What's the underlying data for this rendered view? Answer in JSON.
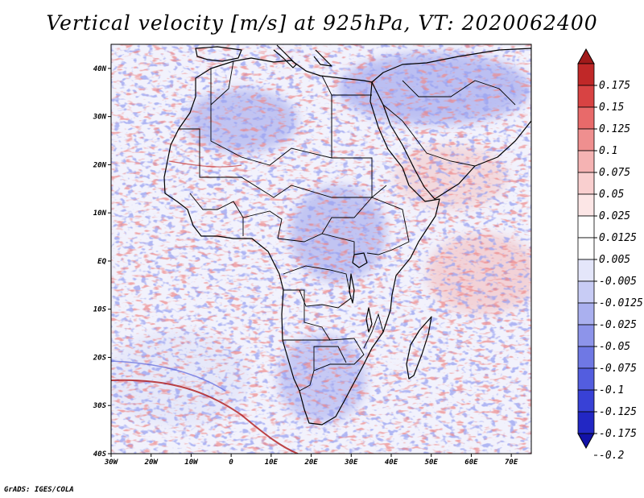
{
  "title": "Vertical velocity [m/s] at 925hPa, VT: 2020062400",
  "credit": "GrADS: IGES/COLA",
  "map": {
    "lon_range": [
      -30,
      75
    ],
    "lat_range": [
      -40,
      45
    ],
    "lat_ticks": [
      {
        "value": 40,
        "label": "40N"
      },
      {
        "value": 30,
        "label": "30N"
      },
      {
        "value": 20,
        "label": "20N"
      },
      {
        "value": 10,
        "label": "10N"
      },
      {
        "value": 0,
        "label": "EQ"
      },
      {
        "value": -10,
        "label": "10S"
      },
      {
        "value": -20,
        "label": "20S"
      },
      {
        "value": -30,
        "label": "30S"
      },
      {
        "value": -40,
        "label": "40S"
      }
    ],
    "lon_ticks": [
      {
        "value": -30,
        "label": "30W"
      },
      {
        "value": -20,
        "label": "20W"
      },
      {
        "value": -10,
        "label": "10W"
      },
      {
        "value": 0,
        "label": "0"
      },
      {
        "value": 10,
        "label": "10E"
      },
      {
        "value": 20,
        "label": "20E"
      },
      {
        "value": 30,
        "label": "30E"
      },
      {
        "value": 40,
        "label": "40E"
      },
      {
        "value": 50,
        "label": "50E"
      },
      {
        "value": 60,
        "label": "60E"
      },
      {
        "value": 70,
        "label": "70E"
      }
    ]
  },
  "colorbar": {
    "colors": [
      "#a11a1a",
      "#c02828",
      "#d84343",
      "#e86a6a",
      "#ef8f8f",
      "#f5b3b3",
      "#f9cfcf",
      "#fce6e6",
      "#ffffff",
      "#ffffff",
      "#e4e6fa",
      "#c8ccf5",
      "#aab0ef",
      "#8d94ea",
      "#6f78e4",
      "#535ddf",
      "#3841d6",
      "#2227c4",
      "#1212a8"
    ],
    "labels": [
      "0.175",
      "0.15",
      "0.125",
      "0.1",
      "0.075",
      "0.05",
      "0.025",
      "0.0125",
      "0.005",
      "-0.005",
      "-0.0125",
      "-0.025",
      "-0.05",
      "-0.075",
      "-0.1",
      "-0.125",
      "-0.175",
      "-0.2"
    ]
  }
}
